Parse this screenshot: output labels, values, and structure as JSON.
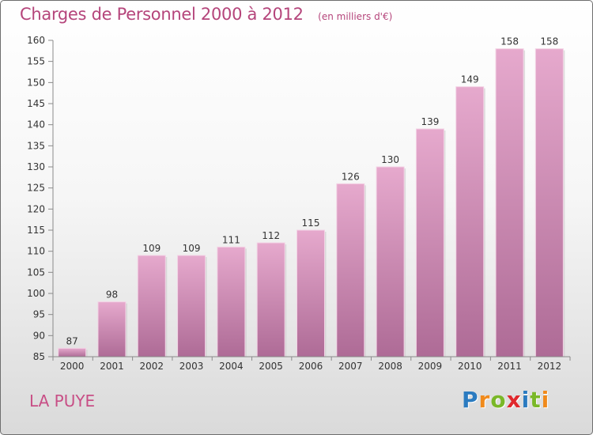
{
  "title": "Charges de Personnel 2000 à 2012",
  "subtitle": "(en milliers d'€)",
  "place": "LA PUYE",
  "logo": {
    "text": "Proxiti",
    "colors": [
      "#2b7bc0",
      "#f08a1c",
      "#7ab828",
      "#e0282d",
      "#2b7bc0",
      "#7ab828",
      "#f08a1c"
    ]
  },
  "colors": {
    "title": "#b5457b",
    "bar_light": "#e4a6cb",
    "bar_dark": "#b06d98",
    "axis": "#777777"
  },
  "chart_data": {
    "type": "bar",
    "categories": [
      "2000",
      "2001",
      "2002",
      "2003",
      "2004",
      "2005",
      "2006",
      "2007",
      "2008",
      "2009",
      "2010",
      "2011",
      "2012"
    ],
    "values": [
      87,
      98,
      109,
      109,
      111,
      112,
      115,
      126,
      130,
      139,
      149,
      158,
      158
    ],
    "data_labels": [
      "87",
      "98",
      "109",
      "109",
      "111",
      "112",
      "115",
      "126",
      "130",
      "139",
      "149",
      "158",
      "158"
    ],
    "title": "Charges de Personnel 2000 à 2012",
    "xlabel": "",
    "ylabel": "",
    "ylim": [
      85,
      160
    ],
    "yticks": [
      85,
      90,
      95,
      100,
      105,
      110,
      115,
      120,
      125,
      130,
      135,
      140,
      145,
      150,
      155,
      160
    ],
    "grid": false,
    "legend": "none"
  }
}
